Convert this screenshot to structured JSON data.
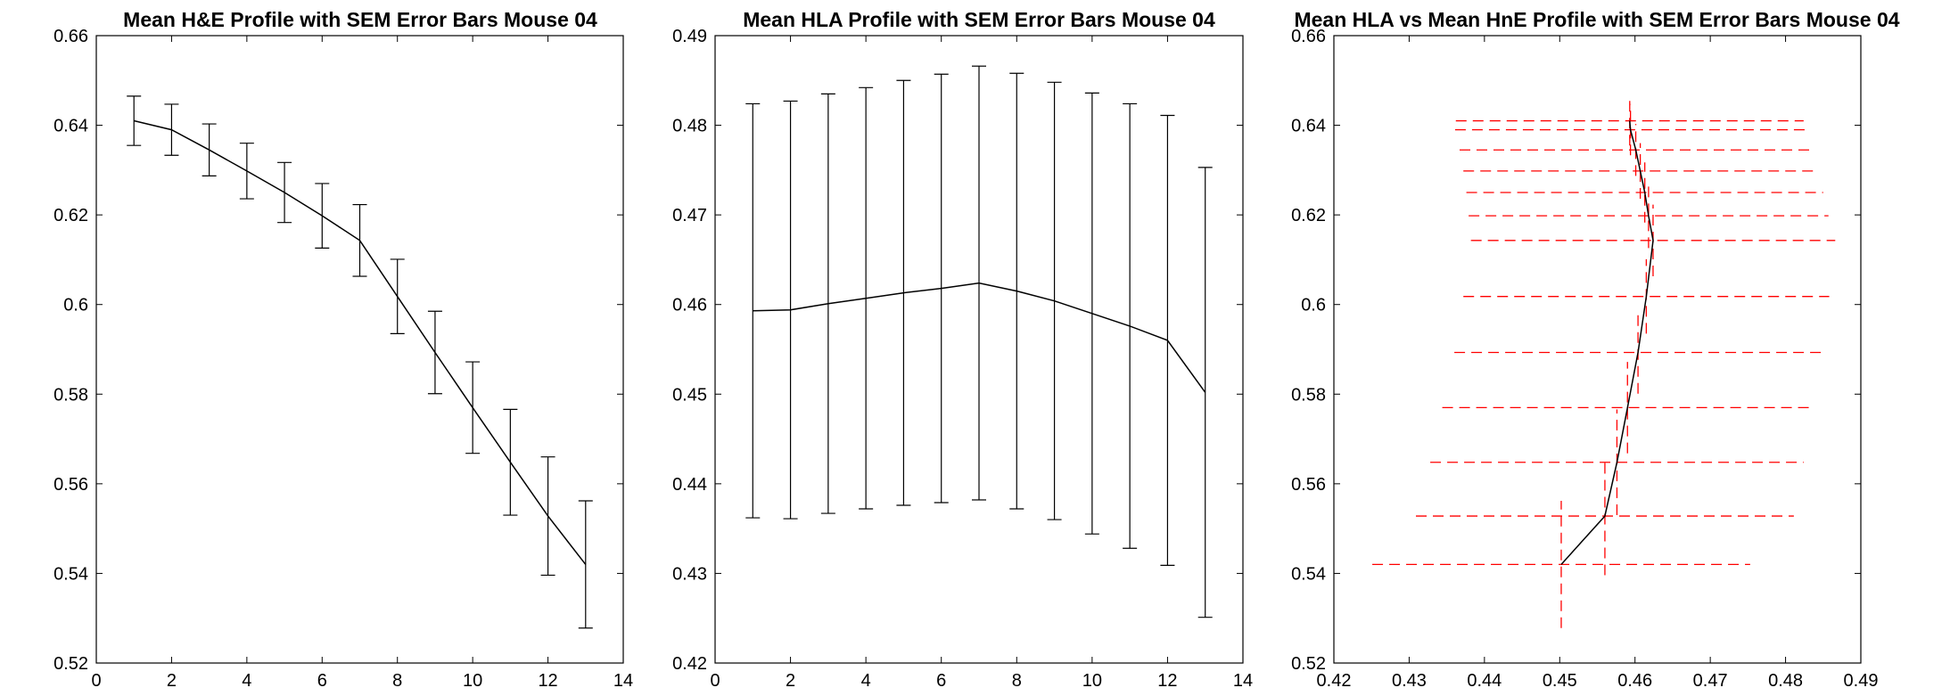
{
  "figure": {
    "background": "#ffffff",
    "axis_color": "#000000"
  },
  "chart_data": [
    {
      "type": "line",
      "title": "Mean H&E Profile with SEM Error Bars Mouse 04",
      "xlabel": "",
      "ylabel": "",
      "xlim": [
        0,
        14
      ],
      "ylim": [
        0.52,
        0.66
      ],
      "xticks": [
        "0",
        "2",
        "4",
        "6",
        "8",
        "10",
        "12",
        "14"
      ],
      "yticks": [
        "0.52",
        "0.54",
        "0.56",
        "0.58",
        "0.6",
        "0.62",
        "0.64",
        "0.66"
      ],
      "grid": false,
      "line_color": "#000000",
      "series": [
        {
          "x": [
            1,
            2,
            3,
            4,
            5,
            6,
            7,
            8,
            9,
            10,
            11,
            12,
            13
          ],
          "y": [
            0.641,
            0.639,
            0.6345,
            0.6298,
            0.625,
            0.6198,
            0.6143,
            0.6018,
            0.5893,
            0.577,
            0.5648,
            0.5528,
            0.542
          ],
          "y_err": [
            0.0055,
            0.0057,
            0.0058,
            0.0062,
            0.0067,
            0.0072,
            0.008,
            0.0083,
            0.0092,
            0.0102,
            0.0118,
            0.0132,
            0.0142
          ]
        }
      ]
    },
    {
      "type": "line",
      "title": "Mean HLA Profile with SEM Error Bars Mouse 04",
      "xlabel": "",
      "ylabel": "",
      "xlim": [
        0,
        14
      ],
      "ylim": [
        0.42,
        0.49
      ],
      "xticks": [
        "0",
        "2",
        "4",
        "6",
        "8",
        "10",
        "12",
        "14"
      ],
      "yticks": [
        "0.42",
        "0.43",
        "0.44",
        "0.45",
        "0.46",
        "0.47",
        "0.48",
        "0.49"
      ],
      "grid": false,
      "line_color": "#000000",
      "series": [
        {
          "x": [
            1,
            2,
            3,
            4,
            5,
            6,
            7,
            8,
            9,
            10,
            11,
            12,
            13
          ],
          "y": [
            0.4593,
            0.4594,
            0.4601,
            0.4607,
            0.4613,
            0.4618,
            0.4624,
            0.4615,
            0.4604,
            0.459,
            0.4576,
            0.456,
            0.4502
          ],
          "y_err": [
            0.0231,
            0.0233,
            0.0234,
            0.0235,
            0.0237,
            0.0239,
            0.0242,
            0.0243,
            0.0244,
            0.0246,
            0.0248,
            0.0251,
            0.0251
          ]
        }
      ]
    },
    {
      "type": "line",
      "title": "Mean HLA vs Mean HnE Profile with SEM Error Bars Mouse 04",
      "xlabel": "",
      "ylabel": "",
      "xlim": [
        0.42,
        0.49
      ],
      "ylim": [
        0.52,
        0.66
      ],
      "xticks": [
        "0.42",
        "0.43",
        "0.44",
        "0.45",
        "0.46",
        "0.47",
        "0.48",
        "0.49"
      ],
      "yticks": [
        "0.52",
        "0.54",
        "0.56",
        "0.58",
        "0.6",
        "0.62",
        "0.64",
        "0.66"
      ],
      "grid": false,
      "line_color": "#000000",
      "error_bar_color": "#ff0000",
      "error_bar_style": "dashed",
      "series": [
        {
          "x": [
            0.4593,
            0.4594,
            0.4601,
            0.4607,
            0.4613,
            0.4618,
            0.4624,
            0.4615,
            0.4604,
            0.459,
            0.4576,
            0.456,
            0.4502
          ],
          "y": [
            0.641,
            0.639,
            0.6345,
            0.6298,
            0.625,
            0.6198,
            0.6143,
            0.6018,
            0.5893,
            0.577,
            0.5648,
            0.5528,
            0.542
          ],
          "x_err": [
            0.0231,
            0.0233,
            0.0234,
            0.0235,
            0.0237,
            0.0239,
            0.0242,
            0.0243,
            0.0244,
            0.0246,
            0.0248,
            0.0251,
            0.0251
          ],
          "y_err": [
            0.0055,
            0.0057,
            0.0058,
            0.0062,
            0.0067,
            0.0072,
            0.008,
            0.0083,
            0.0092,
            0.0102,
            0.0118,
            0.0132,
            0.0142
          ]
        }
      ]
    }
  ]
}
